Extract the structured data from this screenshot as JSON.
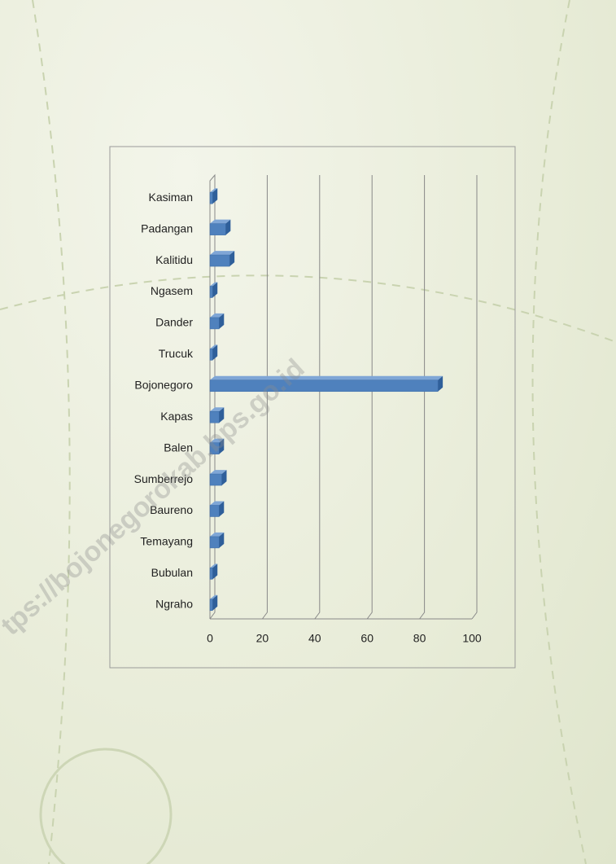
{
  "chart_data": {
    "type": "bar",
    "orientation": "horizontal",
    "three_d": true,
    "categories": [
      "Kasiman",
      "Padangan",
      "Kalitidu",
      "Ngasem",
      "Dander",
      "Trucuk",
      "Bojonegoro",
      "Kapas",
      "Balen",
      "Sumberrejo",
      "Baureno",
      "Temayang",
      "Bubulan",
      "Ngraho"
    ],
    "values": [
      1,
      6,
      7.5,
      1,
      3.5,
      1,
      87,
      3.5,
      3.5,
      4.5,
      3.5,
      3.5,
      1,
      1
    ],
    "color": "#4f81bd",
    "xlim": [
      0,
      100
    ],
    "xticks": [
      0,
      20,
      40,
      60,
      80,
      100
    ],
    "grid": true
  },
  "watermark": "tps://bojonegorokab.bps.go.id"
}
